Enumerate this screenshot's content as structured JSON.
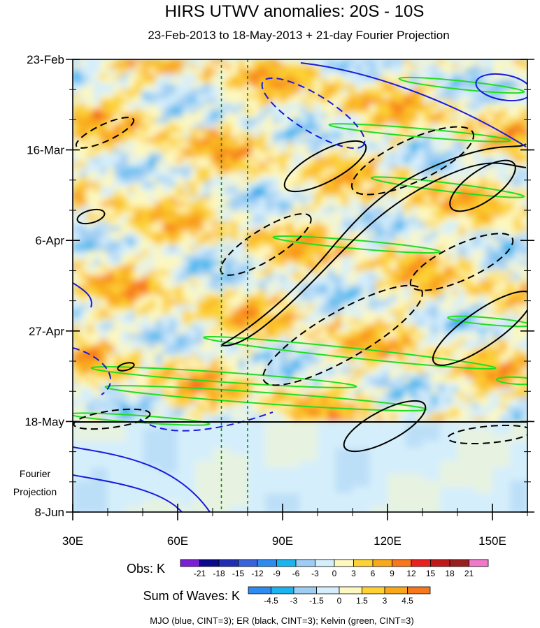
{
  "chart_data": {
    "type": "heatmap",
    "title": "HIRS UTWV anomalies: 20S - 10S",
    "subtitle": "23-Feb-2013 to 18-May-2013 + 21-day Fourier Projection",
    "x_ticks": [
      "30E",
      "60E",
      "90E",
      "120E",
      "150E"
    ],
    "x_tick_values": [
      30,
      60,
      90,
      120,
      150
    ],
    "xlim": [
      30,
      160
    ],
    "y_ticks": [
      "23-Feb",
      "16-Mar",
      "6-Apr",
      "27-Apr",
      "18-May",
      "8-Jun"
    ],
    "y_tick_days": [
      0,
      21,
      42,
      63,
      84,
      105
    ],
    "ylim_days": [
      0,
      105
    ],
    "observation_end_day": 84,
    "projection_label": [
      "Fourier",
      "Projection"
    ],
    "reference_lines_lon": [
      72.5,
      80
    ],
    "obs_colorbar": {
      "label": "Obs: K",
      "levels": [
        "-21",
        "-18",
        "-15",
        "-12",
        "-9",
        "-6",
        "-3",
        "0",
        "3",
        "6",
        "9",
        "12",
        "15",
        "18",
        "21"
      ],
      "colors": [
        "#7a1fd6",
        "#0a0a8c",
        "#1f2fb5",
        "#3a62da",
        "#2d8cf0",
        "#1cb4ee",
        "#9ecdf3",
        "#d5eefb",
        "#fdf8bf",
        "#fcd235",
        "#f9a81a",
        "#f8761c",
        "#e8201e",
        "#c01818",
        "#9a2020",
        "#f078c8"
      ]
    },
    "waves_colorbar": {
      "label": "Sum of Waves: K",
      "levels": [
        "-4.5",
        "-3",
        "-1.5",
        "0",
        "1.5",
        "3",
        "4.5"
      ],
      "colors": [
        "#2d8cf0",
        "#1cb4ee",
        "#9ecdf3",
        "#d5eefb",
        "#fdf8bf",
        "#fcd235",
        "#f9a81a",
        "#f8761c"
      ]
    },
    "footer": "MJO (blue, CINT=3); ER (black, CINT=3); Kelvin (green, CINT=3)",
    "contour_colors": {
      "mjo": "#1a1adc",
      "er": "#000000",
      "kelvin": "#22dd22",
      "reference": "#0a8a0a"
    }
  }
}
